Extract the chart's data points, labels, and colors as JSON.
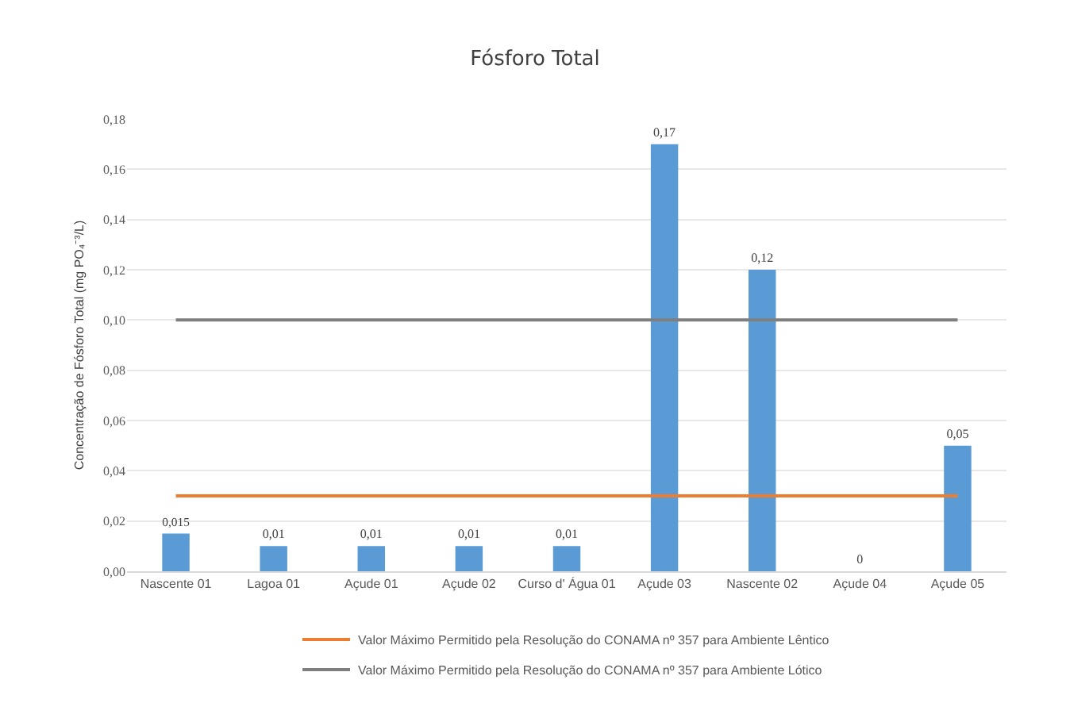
{
  "chart_data": {
    "type": "bar",
    "title": "Fósforo Total",
    "ylabel": "Concentração de Fósforo Total (mg PO₄⁻³/L)",
    "categories": [
      "Nascente 01",
      "Lagoa 01",
      "Açude 01",
      "Açude 02",
      "Curso d' Água 01",
      "Açude 03",
      "Nascente 02",
      "Açude 04",
      "Açude 05"
    ],
    "series": [
      {
        "color": "#5b9bd5",
        "values": [
          0.015,
          0.01,
          0.01,
          0.01,
          0.01,
          0.17,
          0.12,
          0,
          0.05
        ],
        "value_labels": [
          "0,015",
          "0,01",
          "0,01",
          "0,01",
          "0,01",
          "0,17",
          "0,12",
          "0",
          "0,05"
        ]
      },
      {
        "type": "line",
        "name": "Valor Máximo Permitido pela Resolução do CONAMA nº 357 para Ambiente Lêntico",
        "color": "#ed7d31",
        "values": [
          0.03,
          0.03,
          0.03,
          0.03,
          0.03,
          0.03,
          0.03,
          0.03,
          0.03
        ]
      },
      {
        "type": "line",
        "name": "Valor Máximo Permitido pela Resolução do CONAMA nº 357 para Ambiente Lótico",
        "color": "#7f7f7f",
        "values": [
          0.1,
          0.1,
          0.1,
          0.1,
          0.1,
          0.1,
          0.1,
          0.1,
          0.1
        ]
      }
    ],
    "ylim": [
      0,
      0.18
    ],
    "yticks": [
      {
        "value": 0,
        "label": "0,00"
      },
      {
        "value": 0.02,
        "label": "0,02"
      },
      {
        "value": 0.04,
        "label": "0,04"
      },
      {
        "value": 0.06,
        "label": "0,06"
      },
      {
        "value": 0.08,
        "label": "0,08"
      },
      {
        "value": 0.1,
        "label": "0,10"
      },
      {
        "value": 0.12,
        "label": "0,12"
      },
      {
        "value": 0.14,
        "label": "0,14"
      },
      {
        "value": 0.16,
        "label": "0,16"
      },
      {
        "value": 0.18,
        "label": "0,18"
      }
    ],
    "grid": "y",
    "legend": "bottom",
    "marker": "none",
    "line_style": "solid"
  }
}
